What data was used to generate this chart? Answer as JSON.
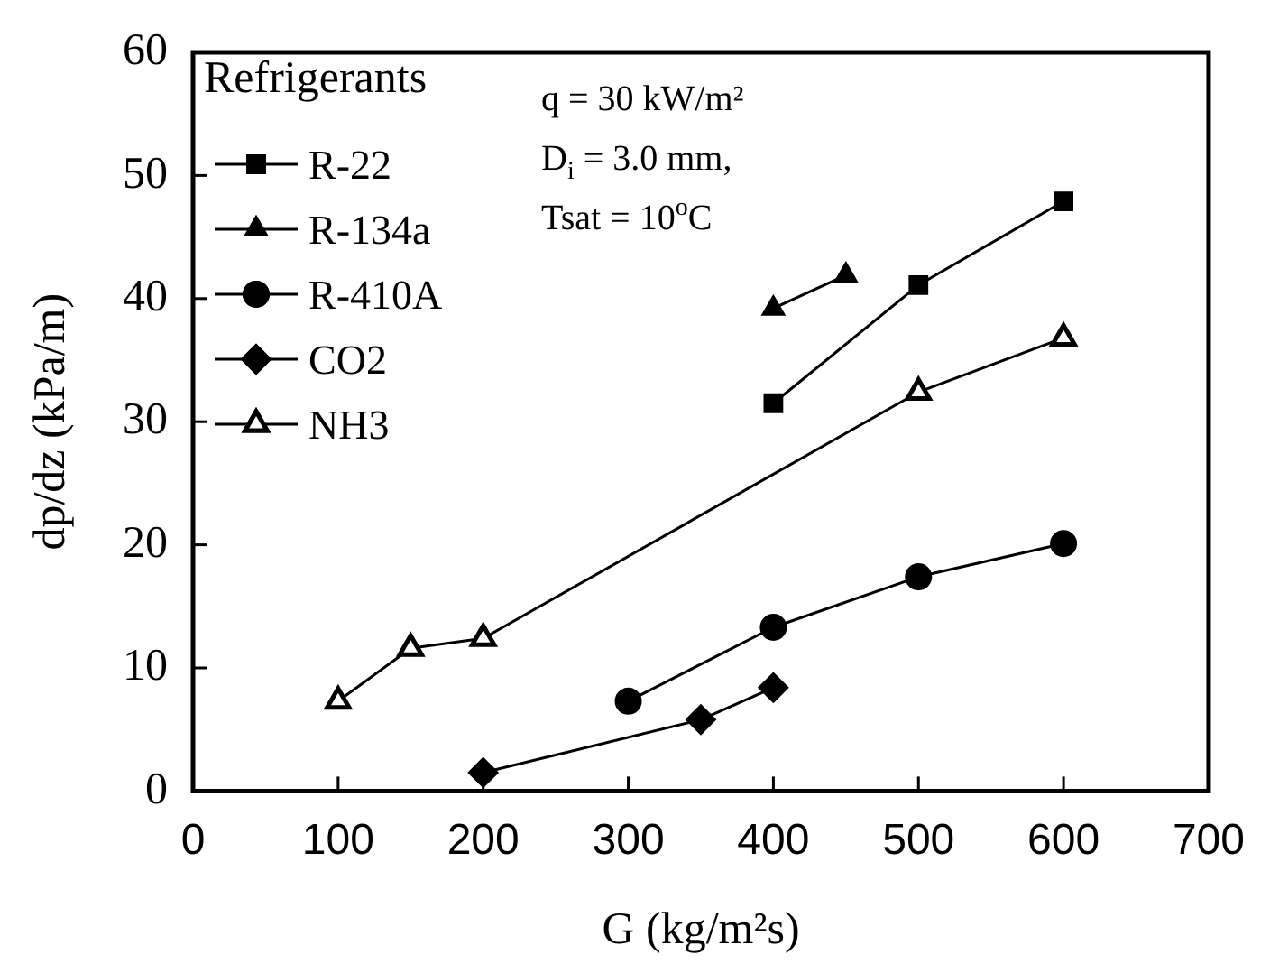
{
  "chart_data": {
    "type": "line",
    "xlabel": "G (kg/m²s)",
    "ylabel": "dp/dz (kPa/m)",
    "legend_title": "Refrigerants",
    "legend": "top left",
    "grid": false,
    "xlim": [
      0,
      700
    ],
    "xticks": [
      0,
      100,
      200,
      300,
      400,
      500,
      600,
      700
    ],
    "ylim": [
      0,
      60
    ],
    "yticks": [
      0,
      10,
      20,
      30,
      40,
      50,
      60
    ],
    "annotations": [
      "q = 30 kW/m²",
      "D$_{i}$ = 3.0 mm,",
      "Tsat = 10$^{o}$C"
    ],
    "series": [
      {
        "name": "R-22",
        "color": "#000000",
        "marker": "square",
        "x": [
          400,
          500,
          600
        ],
        "values": [
          31.5,
          41.1,
          47.9
        ]
      },
      {
        "name": "R-134a",
        "color": "#000000",
        "marker": "triangle",
        "x": [
          400,
          450
        ],
        "values": [
          39.2,
          41.9
        ]
      },
      {
        "name": "R-410A",
        "color": "#000000",
        "marker": "circle",
        "x": [
          300,
          400,
          500,
          600
        ],
        "values": [
          7.3,
          13.3,
          17.4,
          20.1
        ]
      },
      {
        "name": "CO2",
        "color": "#000000",
        "marker": "diamond",
        "x": [
          200,
          350,
          400
        ],
        "values": [
          1.5,
          5.8,
          8.4
        ]
      },
      {
        "name": "NH3",
        "color": "#000000",
        "marker": "triangle",
        "x": [
          100,
          150,
          200,
          500,
          600
        ],
        "values": [
          7.3,
          11.6,
          12.4,
          32.4,
          36.8
        ]
      }
    ]
  }
}
